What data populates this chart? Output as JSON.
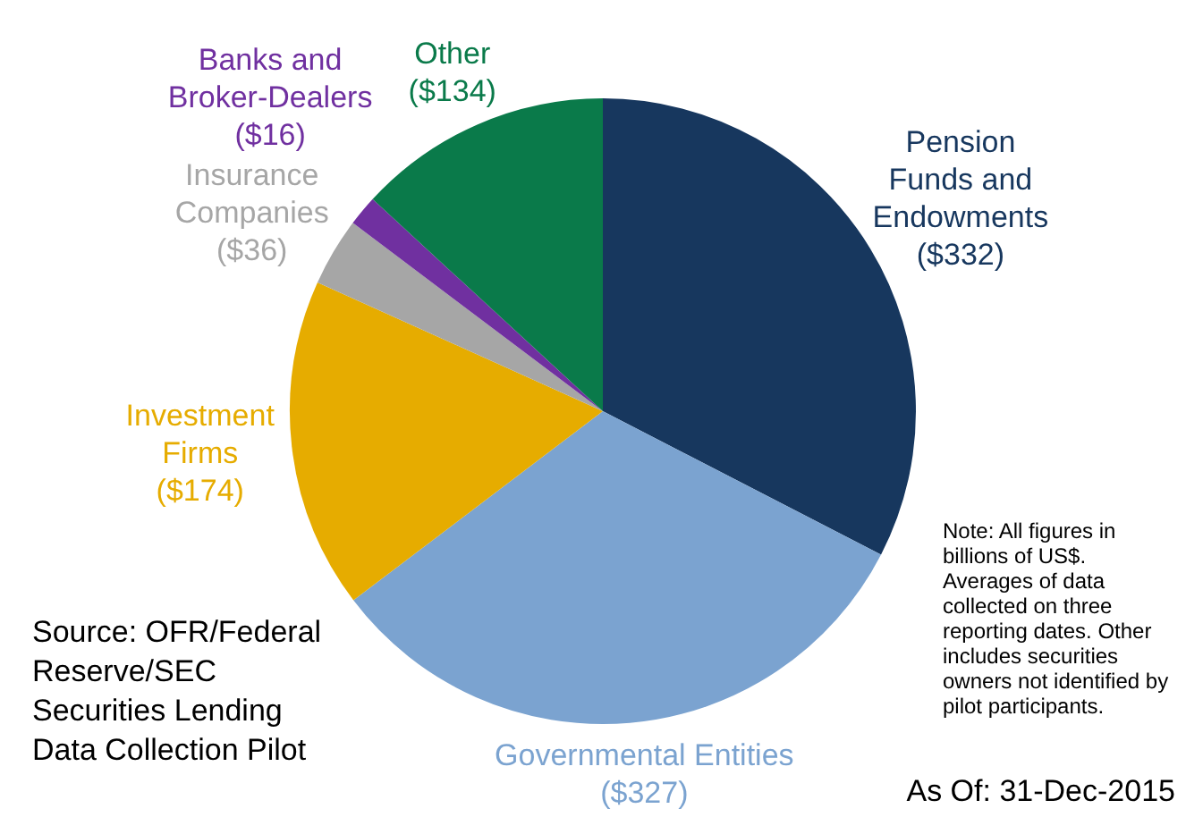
{
  "chart_data": {
    "type": "pie",
    "categories": [
      "Pension Funds and Endowments",
      "Governmental Entities",
      "Investment Firms",
      "Insurance Companies",
      "Banks and Broker-Dealers",
      "Other"
    ],
    "values": [
      332,
      327,
      174,
      36,
      16,
      134
    ],
    "value_labels": [
      "($332)",
      "($327)",
      "($174)",
      "($36)",
      "($16)",
      "($134)"
    ],
    "colors": [
      "#17375e",
      "#7ba3d0",
      "#e6ac00",
      "#a6a6a6",
      "#7030a0",
      "#0a7a4a"
    ],
    "legend": false,
    "annotations": [
      "Source: OFR/Federal Reserve/SEC Securities Lending Data Collection Pilot",
      "Note: All figures in billions of US$. Averages of data collected on three reporting dates. Other includes securities owners not identified by pilot participants.",
      "As Of: 31-Dec-2015"
    ]
  }
}
